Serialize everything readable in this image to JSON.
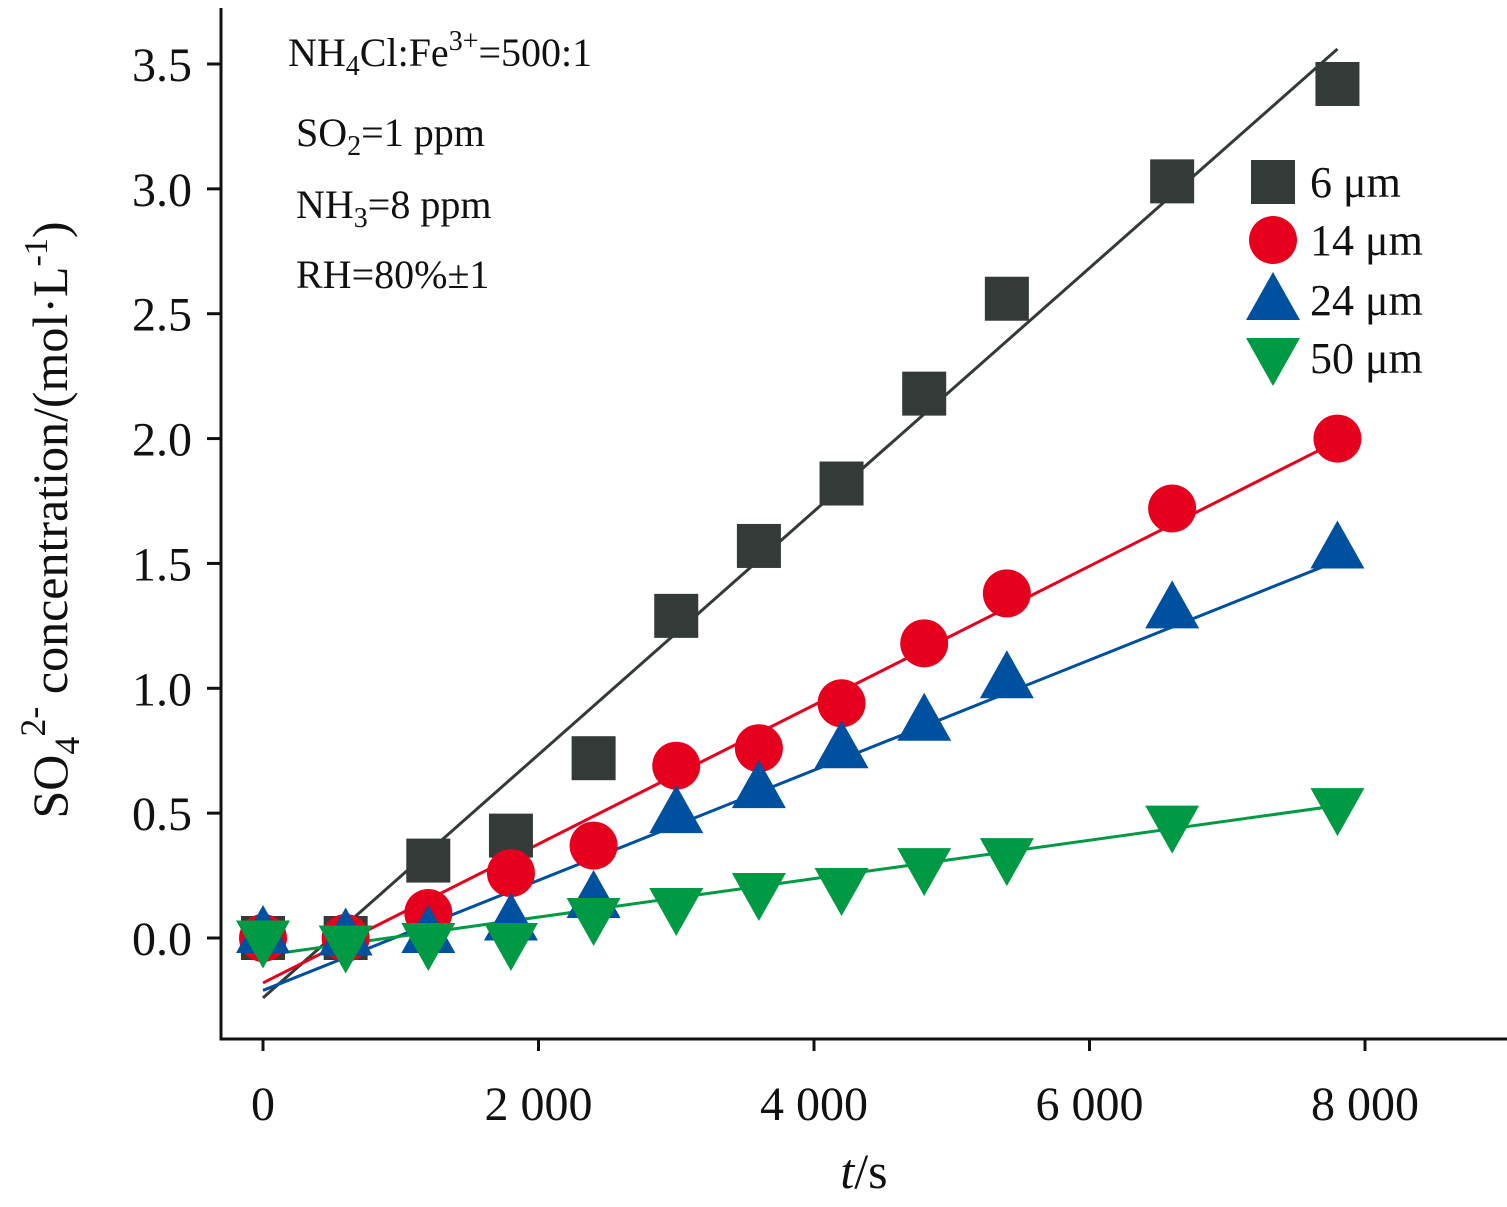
{
  "chart_data": {
    "type": "scatter",
    "xlabel": {
      "italic": "t",
      "rest": "/s"
    },
    "ylabel": {
      "prefix": "SO",
      "sub": "4",
      "sup": "2-",
      "rest": " concentration/(mol·L",
      "sup2": "-1",
      "close": ")"
    },
    "xlim": [
      -150,
      9000
    ],
    "ylim": [
      -0.4,
      3.75
    ],
    "xticks": [
      0,
      2000,
      4000,
      6000,
      8000
    ],
    "xtick_labels": [
      "0",
      "2 000",
      "4 000",
      "6 000",
      "8 000"
    ],
    "yticks": [
      0.0,
      0.5,
      1.0,
      1.5,
      2.0,
      2.5,
      3.0,
      3.5
    ],
    "ytick_labels": [
      "0.0",
      "0.5",
      "1.0",
      "1.5",
      "2.0",
      "2.5",
      "3.0",
      "3.5"
    ],
    "conditions": [
      {
        "parts": [
          [
            "NH",
            ""
          ],
          [
            "4",
            "sub"
          ],
          [
            "Cl:Fe",
            ""
          ],
          [
            "3+",
            "sup"
          ],
          [
            "=500:1",
            ""
          ]
        ]
      },
      {
        "parts": [
          [
            "SO",
            ""
          ],
          [
            "2",
            "sub"
          ],
          [
            "=1 ppm",
            ""
          ]
        ]
      },
      {
        "parts": [
          [
            "NH",
            ""
          ],
          [
            "3",
            "sub"
          ],
          [
            "=8 ppm",
            ""
          ]
        ]
      },
      {
        "parts": [
          [
            "RH=80%±1",
            ""
          ]
        ]
      }
    ],
    "legend_position": "top-right",
    "series": [
      {
        "name": "6 μm",
        "marker": "square",
        "color": "#333a38",
        "x": [
          0,
          600,
          1200,
          1800,
          2400,
          3000,
          3600,
          4200,
          4800,
          5400,
          6600,
          7800
        ],
        "y": [
          0.0,
          0.0,
          0.31,
          0.41,
          0.72,
          1.29,
          1.57,
          1.82,
          2.18,
          2.56,
          3.03,
          3.42
        ],
        "fit": [
          [
            0,
            -0.24
          ],
          [
            7800,
            3.56
          ]
        ]
      },
      {
        "name": "14 μm",
        "marker": "circle",
        "color": "#e6001e",
        "x": [
          0,
          600,
          1200,
          1800,
          2400,
          3000,
          3600,
          4200,
          4800,
          5400,
          6600,
          7800
        ],
        "y": [
          0.0,
          0.0,
          0.1,
          0.26,
          0.37,
          0.69,
          0.76,
          0.94,
          1.18,
          1.38,
          1.72,
          2.0
        ],
        "fit": [
          [
            0,
            -0.18
          ],
          [
            7800,
            1.99
          ]
        ]
      },
      {
        "name": "24 μm",
        "marker": "triangle-up",
        "color": "#0050a0",
        "x": [
          0,
          600,
          1200,
          1800,
          2400,
          3000,
          3600,
          4200,
          4800,
          5400,
          6600,
          7800
        ],
        "y": [
          0.02,
          0.01,
          0.02,
          0.07,
          0.16,
          0.5,
          0.6,
          0.76,
          0.87,
          1.04,
          1.32,
          1.56
        ],
        "fit": [
          [
            0,
            -0.21
          ],
          [
            7800,
            1.51
          ]
        ]
      },
      {
        "name": "50 μm",
        "marker": "triangle-down",
        "color": "#009a44",
        "x": [
          0,
          600,
          1200,
          1800,
          2400,
          3000,
          3600,
          4200,
          4800,
          5400,
          6600,
          7800
        ],
        "y": [
          -0.01,
          -0.03,
          -0.02,
          -0.02,
          0.08,
          0.12,
          0.18,
          0.2,
          0.28,
          0.32,
          0.45,
          0.52
        ],
        "fit": [
          [
            0,
            -0.07
          ],
          [
            7800,
            0.53
          ]
        ]
      }
    ]
  }
}
